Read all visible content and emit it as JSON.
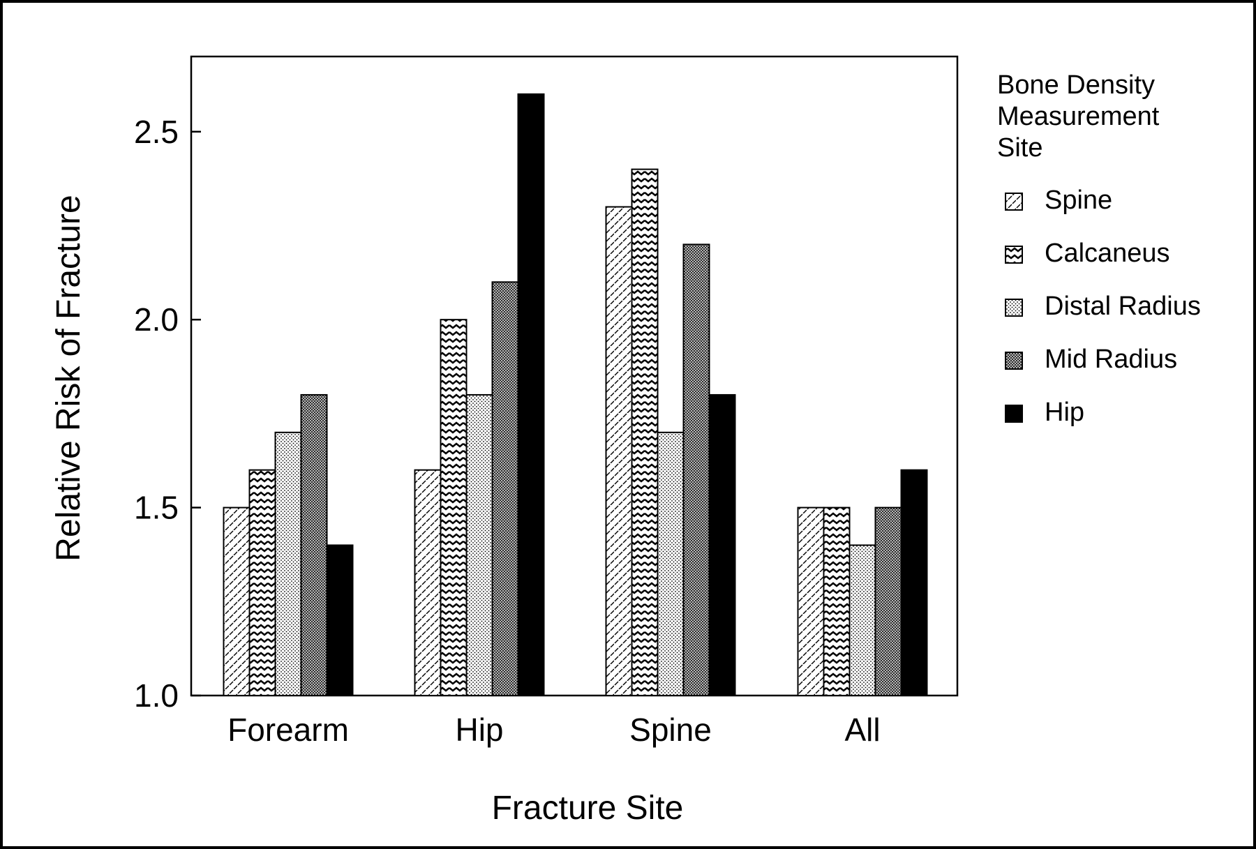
{
  "chart_data": {
    "type": "bar",
    "title": "",
    "xlabel": "Fracture Site",
    "ylabel": "Relative Risk of Fracture",
    "ylim": [
      1.0,
      2.7
    ],
    "yticks": [
      "1.0",
      "1.5",
      "2.0",
      "2.5"
    ],
    "grid": false,
    "legend_position": "right",
    "legend_title_lines": [
      "Bone Density",
      "Measurement",
      "Site"
    ],
    "categories": [
      "Forearm",
      "Hip",
      "Spine",
      "All"
    ],
    "series": [
      {
        "name": "Spine",
        "pattern": "dashes",
        "values": [
          1.5,
          1.6,
          2.3,
          1.5
        ]
      },
      {
        "name": "Calcaneus",
        "pattern": "zigzag",
        "values": [
          1.6,
          2.0,
          2.4,
          1.5
        ]
      },
      {
        "name": "Distal Radius",
        "pattern": "dots-light",
        "values": [
          1.7,
          1.8,
          1.7,
          1.4
        ]
      },
      {
        "name": "Mid Radius",
        "pattern": "dots-dense",
        "values": [
          1.8,
          2.1,
          2.2,
          1.5
        ]
      },
      {
        "name": "Hip",
        "pattern": "solid",
        "values": [
          1.4,
          2.6,
          1.8,
          1.6
        ]
      }
    ]
  },
  "colors": {
    "ink": "#000000",
    "paper": "#ffffff"
  }
}
